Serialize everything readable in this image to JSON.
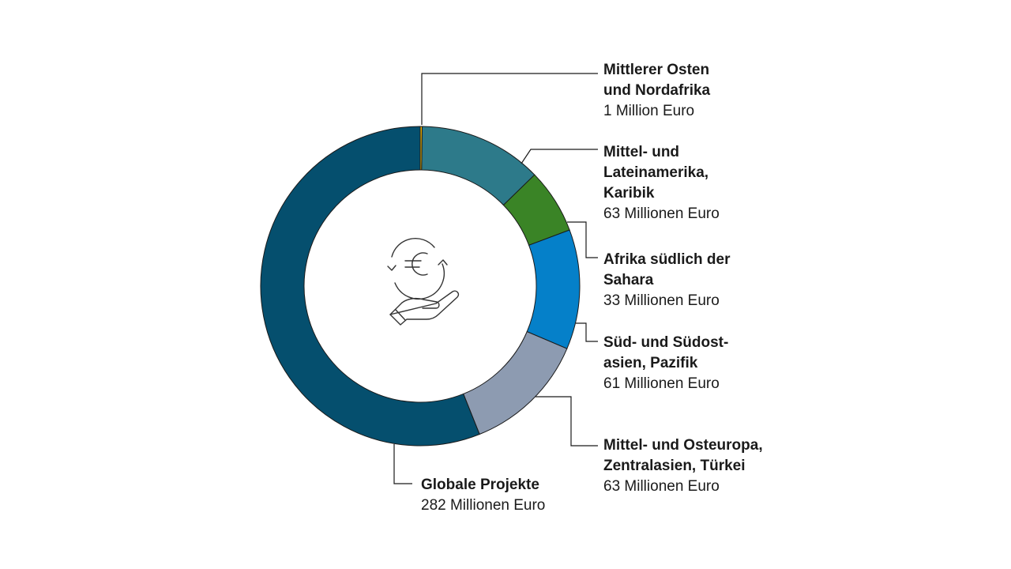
{
  "chart_data": {
    "type": "pie",
    "unit": "Millionen Euro",
    "colors": [
      "#f2b705",
      "#2d7a8a",
      "#3a8426",
      "#0580c9",
      "#8d9bb1",
      "#054f6e"
    ],
    "slices": [
      {
        "name": "Mittlerer Osten\nund Nordafrika",
        "value": 1,
        "value_label": "1 Million Euro"
      },
      {
        "name": "Mittel- und\nLateinamerika,\nKaribik",
        "value": 63,
        "value_label": "63 Millionen Euro"
      },
      {
        "name": "Afrika südlich der\nSahara",
        "value": 33,
        "value_label": "33 Millionen Euro"
      },
      {
        "name": "Süd- und Südost-\nasien, Pazifik",
        "value": 61,
        "value_label": "61 Millionen Euro"
      },
      {
        "name": "Mittel- und Osteuropa,\nZentralasien, Türkei",
        "value": 63,
        "value_label": "63 Millionen Euro"
      },
      {
        "name": "Globale Projekte",
        "value": 282,
        "value_label": "282 Millionen Euro"
      }
    ]
  },
  "center_icon": "euro-exchange-hand-icon"
}
